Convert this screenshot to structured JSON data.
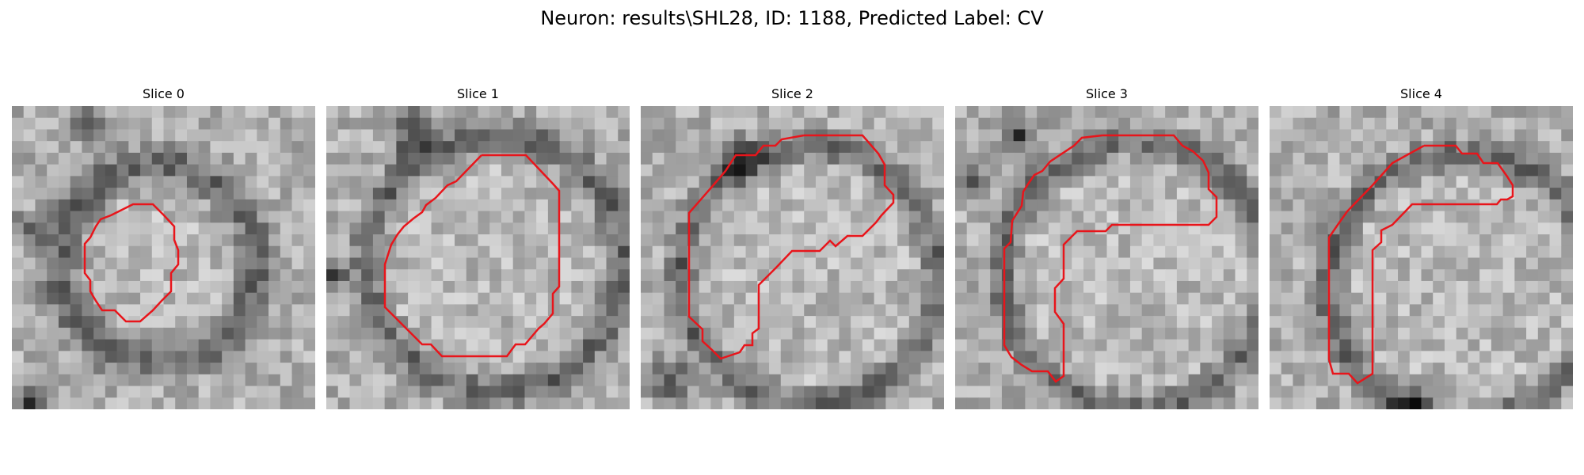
{
  "figure": {
    "title": "Neuron: results\\SHL28, ID: 1188, Predicted Label: CV"
  },
  "panels": [
    {
      "title": "Slice 0",
      "image": "grayscale-microscopy-slice",
      "contour_color": "#e8151b"
    },
    {
      "title": "Slice 1",
      "image": "grayscale-microscopy-slice",
      "contour_color": "#e8151b"
    },
    {
      "title": "Slice 2",
      "image": "grayscale-microscopy-slice",
      "contour_color": "#e8151b"
    },
    {
      "title": "Slice 3",
      "image": "grayscale-microscopy-slice",
      "contour_color": "#e8151b"
    },
    {
      "title": "Slice 4",
      "image": "grayscale-microscopy-slice",
      "contour_color": "#e8151b"
    }
  ]
}
